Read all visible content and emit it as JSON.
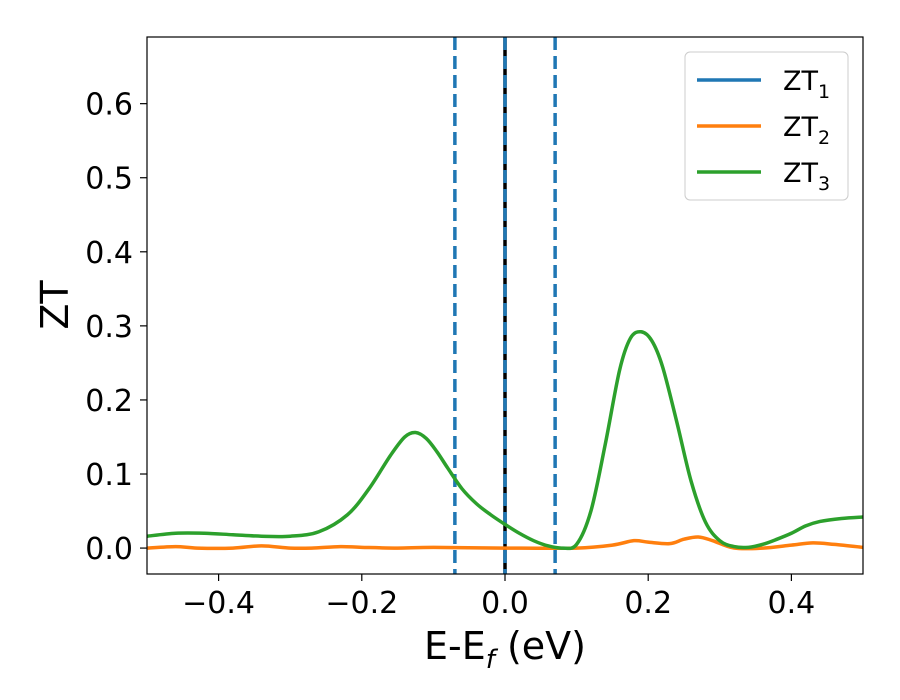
{
  "chart_data": {
    "type": "line",
    "xlabel": {
      "main": "E-E",
      "sub": "f",
      "suffix": " (eV)"
    },
    "ylabel": "ZT",
    "xlim": [
      -0.5,
      0.5
    ],
    "ylim": [
      -0.035,
      0.69
    ],
    "xticks": [
      -0.4,
      -0.2,
      0.0,
      0.2,
      0.4
    ],
    "xtick_labels": [
      "−0.4",
      "−0.2",
      "0.0",
      "0.2",
      "0.4"
    ],
    "yticks": [
      0.0,
      0.1,
      0.2,
      0.3,
      0.4,
      0.5,
      0.6
    ],
    "ytick_labels": [
      "0.0",
      "0.1",
      "0.2",
      "0.3",
      "0.4",
      "0.5",
      "0.6"
    ],
    "grid": false,
    "legend_position": "top-right",
    "series": [
      {
        "name": "ZT",
        "name_sub": "1",
        "color": "#1f77b4",
        "x": [],
        "y": []
      },
      {
        "name": "ZT",
        "name_sub": "2",
        "color": "#ff7f0e",
        "x": [
          -0.5,
          -0.46,
          -0.43,
          -0.38,
          -0.34,
          -0.3,
          -0.27,
          -0.23,
          -0.2,
          -0.15,
          -0.1,
          0.0,
          0.1,
          0.15,
          0.18,
          0.2,
          0.23,
          0.25,
          0.27,
          0.29,
          0.32,
          0.36,
          0.4,
          0.43,
          0.46,
          0.5
        ],
        "y": [
          0.0,
          0.002,
          0.0,
          0.0,
          0.003,
          0.0,
          0.0,
          0.002,
          0.001,
          0.0,
          0.001,
          0.0,
          0.0,
          0.004,
          0.01,
          0.008,
          0.006,
          0.012,
          0.015,
          0.01,
          0.0,
          0.0,
          0.004,
          0.007,
          0.005,
          0.001
        ]
      },
      {
        "name": "ZT",
        "name_sub": "3",
        "color": "#2ca02c",
        "x": [
          -0.5,
          -0.46,
          -0.42,
          -0.38,
          -0.34,
          -0.3,
          -0.26,
          -0.22,
          -0.19,
          -0.16,
          -0.14,
          -0.125,
          -0.11,
          -0.095,
          -0.08,
          -0.06,
          -0.04,
          -0.02,
          0.0,
          0.02,
          0.04,
          0.06,
          0.08,
          0.1,
          0.12,
          0.14,
          0.16,
          0.175,
          0.19,
          0.205,
          0.22,
          0.24,
          0.26,
          0.28,
          0.3,
          0.32,
          0.34,
          0.36,
          0.38,
          0.4,
          0.42,
          0.44,
          0.47,
          0.5
        ],
        "y": [
          0.016,
          0.02,
          0.02,
          0.018,
          0.016,
          0.016,
          0.022,
          0.045,
          0.08,
          0.125,
          0.15,
          0.156,
          0.148,
          0.13,
          0.108,
          0.08,
          0.06,
          0.045,
          0.032,
          0.02,
          0.01,
          0.003,
          0.0,
          0.005,
          0.05,
          0.14,
          0.24,
          0.283,
          0.292,
          0.28,
          0.245,
          0.17,
          0.09,
          0.035,
          0.01,
          0.002,
          0.001,
          0.005,
          0.012,
          0.02,
          0.03,
          0.036,
          0.04,
          0.042
        ]
      }
    ],
    "vertical_lines": [
      {
        "x": -0.07,
        "color": "#1f77b4",
        "style": "dashed"
      },
      {
        "x": 0.0,
        "color": "#000000",
        "style": "solid"
      },
      {
        "x": 0.0,
        "color": "#1f77b4",
        "style": "dashed"
      },
      {
        "x": 0.07,
        "color": "#1f77b4",
        "style": "dashed"
      }
    ]
  }
}
